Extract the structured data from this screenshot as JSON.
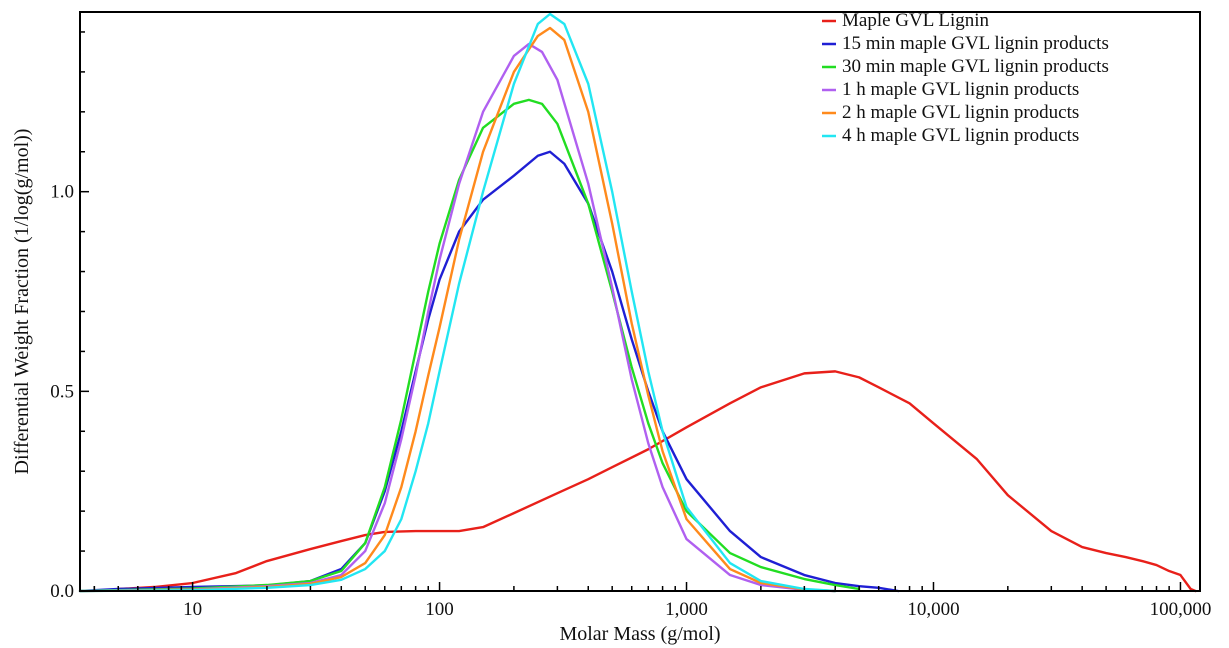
{
  "chart_data": {
    "type": "line",
    "title": "",
    "xlabel": "Molar Mass (g/mol)",
    "ylabel": "Differential Weight Fraction (1/log(g/mol))",
    "x_scale": "log",
    "xlim": [
      3.5,
      120000
    ],
    "ylim": [
      0,
      1.45
    ],
    "x_ticks": [
      {
        "value": 10,
        "label": "10"
      },
      {
        "value": 100,
        "label": "100"
      },
      {
        "value": 1000,
        "label": "1,000"
      },
      {
        "value": 10000,
        "label": "10,000"
      },
      {
        "value": 100000,
        "label": "100,000"
      }
    ],
    "y_ticks": [
      {
        "value": 0,
        "label": "0.0"
      },
      {
        "value": 0.5,
        "label": "0.5"
      },
      {
        "value": 1.0,
        "label": "1.0"
      }
    ],
    "grid": false,
    "legend_position": "top-right",
    "series": [
      {
        "name": "Maple GVL Lignin",
        "color": "#e8201a",
        "points": [
          [
            5,
            0.005
          ],
          [
            7,
            0.01
          ],
          [
            10,
            0.02
          ],
          [
            15,
            0.045
          ],
          [
            20,
            0.075
          ],
          [
            30,
            0.105
          ],
          [
            40,
            0.125
          ],
          [
            50,
            0.14
          ],
          [
            60,
            0.148
          ],
          [
            80,
            0.15
          ],
          [
            120,
            0.15
          ],
          [
            150,
            0.16
          ],
          [
            200,
            0.195
          ],
          [
            300,
            0.245
          ],
          [
            400,
            0.28
          ],
          [
            500,
            0.31
          ],
          [
            700,
            0.355
          ],
          [
            1000,
            0.41
          ],
          [
            1500,
            0.47
          ],
          [
            2000,
            0.51
          ],
          [
            3000,
            0.545
          ],
          [
            4000,
            0.55
          ],
          [
            5000,
            0.535
          ],
          [
            6000,
            0.51
          ],
          [
            8000,
            0.47
          ],
          [
            10000,
            0.42
          ],
          [
            15000,
            0.33
          ],
          [
            20000,
            0.24
          ],
          [
            30000,
            0.15
          ],
          [
            40000,
            0.11
          ],
          [
            50000,
            0.095
          ],
          [
            60000,
            0.085
          ],
          [
            70000,
            0.075
          ],
          [
            80000,
            0.065
          ],
          [
            90000,
            0.05
          ],
          [
            100000,
            0.04
          ],
          [
            110000,
            0.005
          ],
          [
            115000,
            0.0
          ]
        ]
      },
      {
        "name": "15 min maple GVL lignin products",
        "color": "#1f1fd4",
        "points": [
          [
            3.5,
            0.0
          ],
          [
            5,
            0.005
          ],
          [
            10,
            0.01
          ],
          [
            20,
            0.014
          ],
          [
            30,
            0.025
          ],
          [
            40,
            0.055
          ],
          [
            50,
            0.12
          ],
          [
            60,
            0.25
          ],
          [
            70,
            0.4
          ],
          [
            80,
            0.55
          ],
          [
            90,
            0.68
          ],
          [
            100,
            0.78
          ],
          [
            120,
            0.9
          ],
          [
            150,
            0.98
          ],
          [
            200,
            1.04
          ],
          [
            250,
            1.09
          ],
          [
            280,
            1.1
          ],
          [
            320,
            1.07
          ],
          [
            400,
            0.97
          ],
          [
            500,
            0.8
          ],
          [
            600,
            0.63
          ],
          [
            700,
            0.5
          ],
          [
            800,
            0.4
          ],
          [
            1000,
            0.28
          ],
          [
            1500,
            0.15
          ],
          [
            2000,
            0.085
          ],
          [
            3000,
            0.04
          ],
          [
            4000,
            0.02
          ],
          [
            5000,
            0.012
          ],
          [
            6000,
            0.008
          ],
          [
            7200,
            0.0
          ]
        ]
      },
      {
        "name": "30 min maple GVL lignin products",
        "color": "#22dd22",
        "points": [
          [
            3.5,
            0.0
          ],
          [
            10,
            0.006
          ],
          [
            20,
            0.015
          ],
          [
            30,
            0.025
          ],
          [
            40,
            0.05
          ],
          [
            50,
            0.12
          ],
          [
            60,
            0.26
          ],
          [
            70,
            0.43
          ],
          [
            80,
            0.6
          ],
          [
            90,
            0.75
          ],
          [
            100,
            0.87
          ],
          [
            120,
            1.03
          ],
          [
            150,
            1.16
          ],
          [
            200,
            1.22
          ],
          [
            230,
            1.23
          ],
          [
            260,
            1.22
          ],
          [
            300,
            1.17
          ],
          [
            400,
            0.97
          ],
          [
            500,
            0.75
          ],
          [
            600,
            0.56
          ],
          [
            700,
            0.42
          ],
          [
            800,
            0.32
          ],
          [
            1000,
            0.2
          ],
          [
            1500,
            0.095
          ],
          [
            2000,
            0.06
          ],
          [
            3000,
            0.03
          ],
          [
            4000,
            0.015
          ],
          [
            5000,
            0.005
          ]
        ]
      },
      {
        "name": "1 h maple GVL lignin products",
        "color": "#b060f0",
        "points": [
          [
            3.5,
            0.0
          ],
          [
            10,
            0.004
          ],
          [
            20,
            0.012
          ],
          [
            30,
            0.02
          ],
          [
            40,
            0.04
          ],
          [
            50,
            0.1
          ],
          [
            60,
            0.22
          ],
          [
            70,
            0.38
          ],
          [
            80,
            0.54
          ],
          [
            90,
            0.7
          ],
          [
            100,
            0.83
          ],
          [
            120,
            1.02
          ],
          [
            150,
            1.2
          ],
          [
            200,
            1.34
          ],
          [
            230,
            1.37
          ],
          [
            260,
            1.35
          ],
          [
            300,
            1.28
          ],
          [
            400,
            1.02
          ],
          [
            500,
            0.76
          ],
          [
            600,
            0.53
          ],
          [
            700,
            0.37
          ],
          [
            800,
            0.26
          ],
          [
            1000,
            0.13
          ],
          [
            1500,
            0.04
          ],
          [
            2000,
            0.015
          ],
          [
            3000,
            0.003
          ],
          [
            4000,
            0.0
          ]
        ]
      },
      {
        "name": "2 h maple GVL lignin products",
        "color": "#ff8a1c",
        "points": [
          [
            3.5,
            0.0
          ],
          [
            10,
            0.003
          ],
          [
            20,
            0.01
          ],
          [
            30,
            0.018
          ],
          [
            40,
            0.035
          ],
          [
            50,
            0.07
          ],
          [
            60,
            0.14
          ],
          [
            70,
            0.26
          ],
          [
            80,
            0.4
          ],
          [
            90,
            0.54
          ],
          [
            100,
            0.66
          ],
          [
            120,
            0.88
          ],
          [
            150,
            1.1
          ],
          [
            200,
            1.3
          ],
          [
            250,
            1.39
          ],
          [
            280,
            1.41
          ],
          [
            320,
            1.38
          ],
          [
            400,
            1.2
          ],
          [
            500,
            0.92
          ],
          [
            600,
            0.67
          ],
          [
            700,
            0.49
          ],
          [
            800,
            0.35
          ],
          [
            1000,
            0.18
          ],
          [
            1500,
            0.055
          ],
          [
            2000,
            0.02
          ],
          [
            3000,
            0.004
          ],
          [
            4000,
            0.0
          ]
        ]
      },
      {
        "name": "4 h maple GVL lignin products",
        "color": "#22e6f2",
        "points": [
          [
            3.5,
            0.0
          ],
          [
            10,
            0.002
          ],
          [
            20,
            0.008
          ],
          [
            30,
            0.015
          ],
          [
            40,
            0.028
          ],
          [
            50,
            0.055
          ],
          [
            60,
            0.1
          ],
          [
            70,
            0.18
          ],
          [
            80,
            0.3
          ],
          [
            90,
            0.42
          ],
          [
            100,
            0.55
          ],
          [
            120,
            0.77
          ],
          [
            150,
            1.0
          ],
          [
            200,
            1.27
          ],
          [
            250,
            1.42
          ],
          [
            280,
            1.445
          ],
          [
            320,
            1.42
          ],
          [
            400,
            1.27
          ],
          [
            500,
            1.0
          ],
          [
            600,
            0.75
          ],
          [
            700,
            0.55
          ],
          [
            800,
            0.4
          ],
          [
            1000,
            0.21
          ],
          [
            1500,
            0.07
          ],
          [
            2000,
            0.025
          ],
          [
            3000,
            0.005
          ],
          [
            4000,
            0.0
          ]
        ]
      }
    ]
  }
}
